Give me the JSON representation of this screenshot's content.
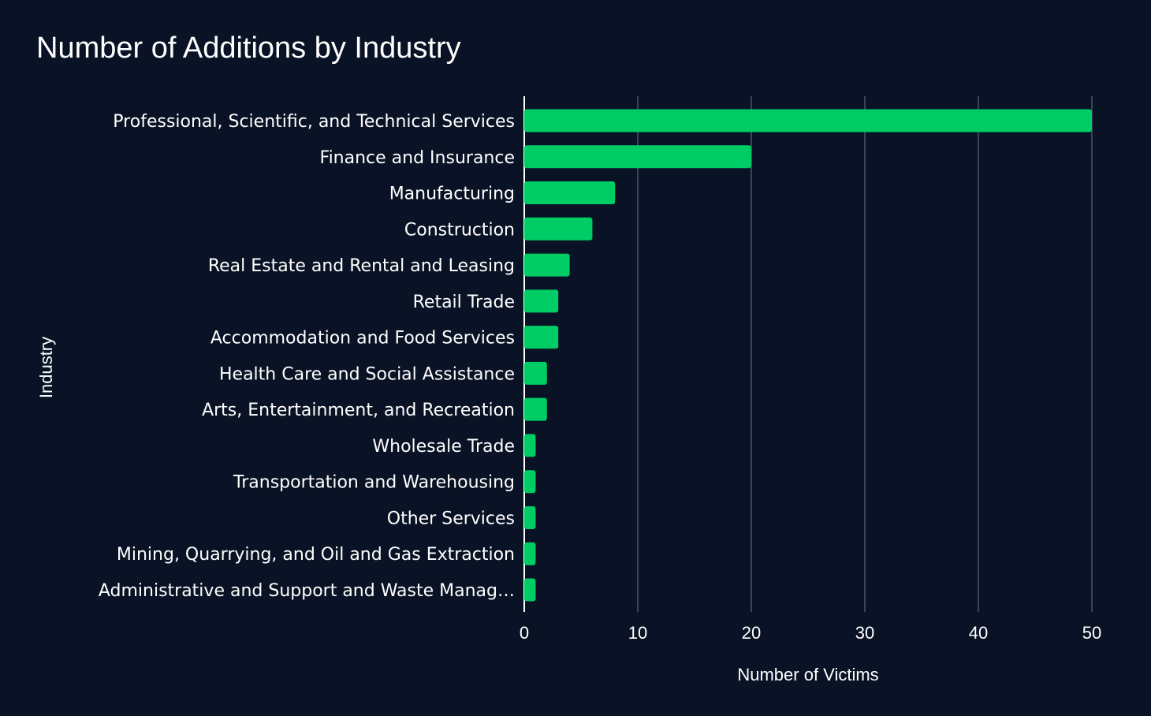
{
  "chart_data": {
    "type": "bar",
    "orientation": "horizontal",
    "title": "Number of Additions by Industry",
    "xlabel": "Number of Victims",
    "ylabel": "Industry",
    "xlim": [
      0,
      52
    ],
    "xticks": [
      0,
      10,
      20,
      30,
      40,
      50
    ],
    "grid": true,
    "categories": [
      "Professional, Scientific, and Technical Services",
      "Finance and Insurance",
      "Manufacturing",
      "Construction",
      "Real Estate and Rental and Leasing",
      "Retail Trade",
      "Accommodation and Food Services",
      "Health Care and Social Assistance",
      "Arts, Entertainment, and Recreation",
      "Wholesale Trade",
      "Transportation and Warehousing",
      "Other Services",
      "Mining, Quarrying, and Oil and Gas Extraction",
      "Administrative and Support and Waste Manag…"
    ],
    "values": [
      50,
      20,
      8,
      6,
      4,
      3,
      3,
      2,
      2,
      1,
      1,
      1,
      1,
      1
    ],
    "colors": {
      "background": "#0a1325",
      "bar": "#00cc66",
      "grid": "#5a6478",
      "text": "#ffffff"
    }
  }
}
